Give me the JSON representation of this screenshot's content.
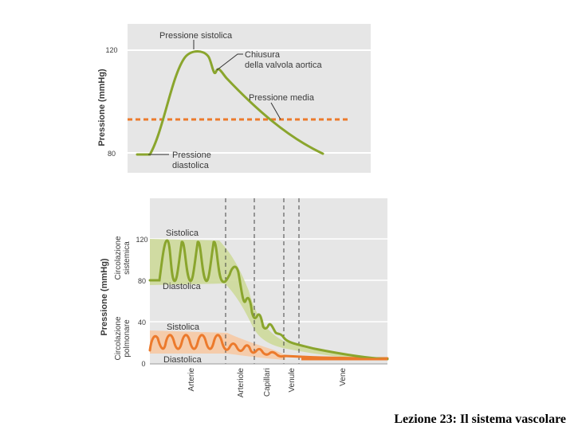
{
  "top_diagram": {
    "ylabel": "Pressione (mmHg)",
    "tick_120": "120",
    "tick_80": "80",
    "label_systolic": "Pressione sistolica",
    "label_valve_1": "Chiusura",
    "label_valve_2": "della valvola aortica",
    "label_mean": "Pressione media",
    "label_diastolic_1": "Pressione",
    "label_diastolic_2": "diastolica"
  },
  "bottom_diagram": {
    "ylabel": "Pressione (mmHg)",
    "group_systemic_1": "Circolazione",
    "group_systemic_2": "sistemica",
    "group_pulmonary_1": "Circolazione",
    "group_pulmonary_2": "polmonare",
    "ticks": [
      "120",
      "80",
      "40",
      "0"
    ],
    "systemic_systolic": "Sistolica",
    "systemic_diastolic": "Diastolica",
    "pulmonary_systolic": "Sistolica",
    "pulmonary_diastolic": "Diastolica",
    "vessels": [
      "Arterie",
      "Arteriole",
      "Capillari",
      "Venule",
      "Vene"
    ]
  },
  "colors": {
    "panel_bg": "#e6e6e6",
    "systemic_curve": "#8aa52d",
    "systemic_band": "#cdd99a",
    "pulmonary_curve": "#ec7a2c",
    "pulmonary_band": "#f6c9a4",
    "mean_line": "#ec7a2c"
  },
  "footer": "Lezione 23: Il sistema vascolare"
}
